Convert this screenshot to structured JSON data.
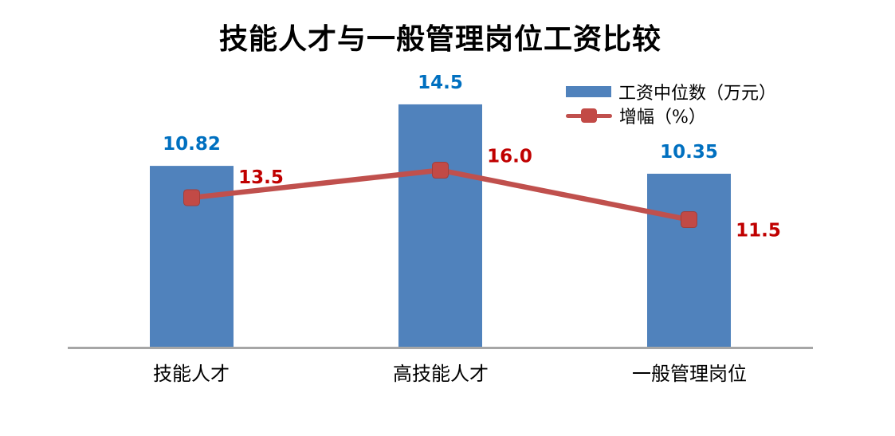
{
  "title": "技能人才与一般管理岗位工资比较",
  "colors": {
    "bar": "#5082BC",
    "line": "#C0504D",
    "marker_fill": "#C24A46",
    "marker_border": "#A13F3C",
    "bar_value_label": "#0070C0",
    "line_value_label": "#C00000",
    "axis_line": "#A6A6A6",
    "text": "#000000"
  },
  "chart_data": {
    "type": "bar",
    "combo": "bar+line",
    "title": "技能人才与一般管理岗位工资比较",
    "categories": [
      "技能人才",
      "高技能人才",
      "一般管理岗位"
    ],
    "series": [
      {
        "name": "工资中位数（万元）",
        "type": "bar",
        "axis": "primary",
        "values": [
          10.82,
          14.5,
          10.35
        ],
        "value_labels": [
          "10.82",
          "14.5",
          "10.35"
        ]
      },
      {
        "name": "增幅（%）",
        "type": "line",
        "axis": "secondary",
        "values": [
          13.5,
          16.0,
          11.5
        ],
        "value_labels": [
          "13.5",
          "16.0",
          "11.5"
        ]
      }
    ],
    "xlabel": "",
    "ylabel": "",
    "ylim_primary": [
      0,
      16.3
    ],
    "ylim_secondary": [
      0,
      24.8
    ],
    "grid": false,
    "axes_ticks_shown": false,
    "data_labels_shown": true,
    "legend_position": "top-right"
  }
}
